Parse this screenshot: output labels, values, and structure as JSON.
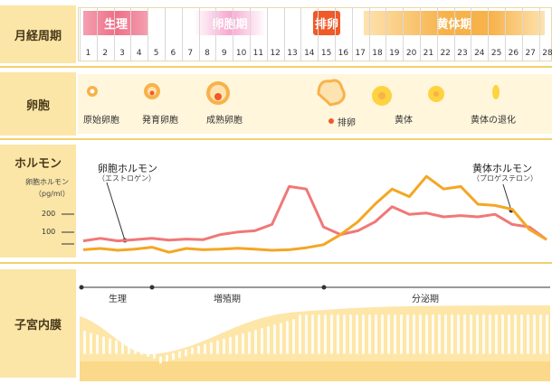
{
  "rows": {
    "cycle": "月経周期",
    "follicle": "卵胞",
    "hormone": "ホルモン",
    "endometrium": "子宮内膜"
  },
  "phases": {
    "menstruation": "生理",
    "follicular": "卵胞期",
    "ovulation": "排卵",
    "luteal": "黄体期"
  },
  "days": [
    "1",
    "2",
    "3",
    "4",
    "5",
    "6",
    "7",
    "8",
    "9",
    "10",
    "11",
    "12",
    "13",
    "14",
    "15",
    "16",
    "17",
    "18",
    "19",
    "20",
    "21",
    "22",
    "23",
    "24",
    "25",
    "26",
    "27",
    "28"
  ],
  "follicle_labels": {
    "primordial": "原始卵胞",
    "developing": "発育卵胞",
    "mature": "成熟卵胞",
    "ovulation": "排卵",
    "corpus_luteum": "黄体",
    "regression": "黄体の退化"
  },
  "hormone": {
    "estrogen": "卵胞ホルモン",
    "estrogen_sub": "（エストロゲン）",
    "progesterone": "黄体ホルモン",
    "progesterone_sub": "（プロゲステロン）",
    "axis_title": "卵胞ホルモン",
    "axis_unit": "（pg/ml）",
    "tick_200": "200",
    "tick_100": "100"
  },
  "endometrium_phases": {
    "menstrual": "生理",
    "proliferative": "増殖期",
    "secretory": "分泌期"
  },
  "chart_data": {
    "type": "line",
    "x": [
      1,
      2,
      3,
      4,
      5,
      6,
      7,
      8,
      9,
      10,
      11,
      12,
      13,
      14,
      15,
      16,
      17,
      18,
      19,
      20,
      21,
      22,
      23,
      24,
      25,
      26,
      27,
      28
    ],
    "series": [
      {
        "name": "卵胞ホルモン",
        "values": [
          55,
          65,
          55,
          60,
          65,
          58,
          62,
          60,
          80,
          90,
          95,
          120,
          270,
          260,
          110,
          80,
          95,
          130,
          190,
          160,
          165,
          150,
          155,
          150,
          160,
          120,
          110,
          60
        ]
      },
      {
        "name": "黄体ホルモン",
        "values": [
          20,
          25,
          18,
          22,
          30,
          10,
          25,
          20,
          22,
          26,
          22,
          18,
          20,
          28,
          40,
          80,
          130,
          200,
          260,
          230,
          310,
          260,
          270,
          200,
          195,
          180,
          100,
          60
        ]
      }
    ],
    "ylabel": "卵胞ホルモン（pg/ml）",
    "colors": {
      "estrogen": "#f07878",
      "progesterone": "#f5a623"
    }
  }
}
